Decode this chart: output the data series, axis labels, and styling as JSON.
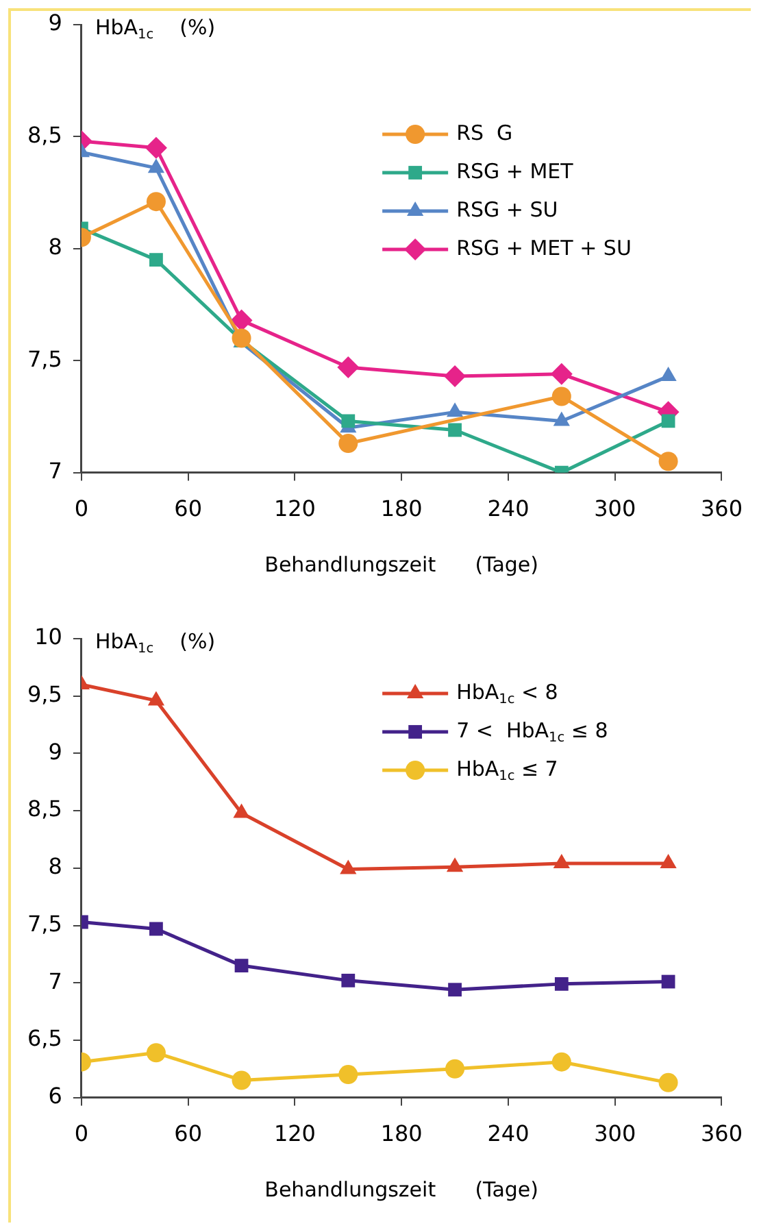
{
  "chart_data": [
    {
      "type": "line",
      "ylabel": "HbA$_{1c}$    (%)",
      "xlabel": "Behandlungszeit      (Tage)",
      "x": [
        0,
        42,
        90,
        150,
        210,
        270,
        330
      ],
      "series": [
        {
          "name": "RS  G",
          "color": "#f0982f",
          "marker": "circle",
          "values": [
            8.05,
            8.21,
            7.6,
            7.13,
            null,
            7.34,
            7.05
          ]
        },
        {
          "name": "RSG + MET",
          "color": "#2ea98a",
          "marker": "square",
          "values": [
            8.09,
            7.95,
            7.59,
            7.23,
            7.19,
            7.0,
            7.23
          ]
        },
        {
          "name": "RSG + SU",
          "color": "#5685c6",
          "marker": "triangle",
          "values": [
            8.43,
            8.36,
            7.58,
            7.2,
            7.27,
            7.23,
            7.43
          ]
        },
        {
          "name": "RSG + MET + SU",
          "color": "#e6238a",
          "marker": "diamond",
          "values": [
            8.48,
            8.45,
            7.68,
            7.47,
            7.43,
            7.44,
            7.27
          ]
        }
      ],
      "xlim": [
        0,
        360
      ],
      "xticks": [
        0,
        60,
        120,
        180,
        240,
        300,
        360
      ],
      "ylim": [
        7,
        9
      ],
      "yticks": [
        7,
        {
          "value": 7.5,
          "label": "7,5"
        },
        8,
        {
          "value": 8.5,
          "label": "8,5"
        },
        9
      ],
      "grid": false,
      "legend": "right",
      "line_style": "solid"
    },
    {
      "type": "line",
      "ylabel": "HbA$_{1c}$    (%)",
      "xlabel": "Behandlungszeit      (Tage)",
      "x": [
        0,
        42,
        90,
        150,
        210,
        270,
        330
      ],
      "series": [
        {
          "name": "HbA$_{1c}$ < 8",
          "color": "#d9412a",
          "marker": "triangle",
          "values": [
            9.6,
            9.46,
            8.48,
            7.99,
            8.01,
            8.04,
            8.04
          ]
        },
        {
          "name": "7 <  HbA$_{1c}$ ≤ 8",
          "color": "#43228a",
          "marker": "square",
          "values": [
            7.53,
            7.47,
            7.15,
            7.02,
            6.94,
            6.99,
            7.01
          ]
        },
        {
          "name": "HbA$_{1c}$ ≤ 7",
          "color": "#f0c02a",
          "marker": "circle",
          "values": [
            6.31,
            6.39,
            6.15,
            6.2,
            6.25,
            6.31,
            6.13
          ]
        }
      ],
      "xlim": [
        0,
        360
      ],
      "xticks": [
        0,
        60,
        120,
        180,
        240,
        300,
        360
      ],
      "ylim": [
        6,
        10
      ],
      "yticks": [
        6,
        {
          "value": 6.5,
          "label": "6,5"
        },
        7,
        {
          "value": 7.5,
          "label": "7,5"
        },
        8,
        {
          "value": 8.5,
          "label": "8,5"
        },
        9,
        {
          "value": 9.5,
          "label": "9,5"
        },
        10
      ],
      "grid": false,
      "legend": "right",
      "line_style": "solid"
    }
  ]
}
